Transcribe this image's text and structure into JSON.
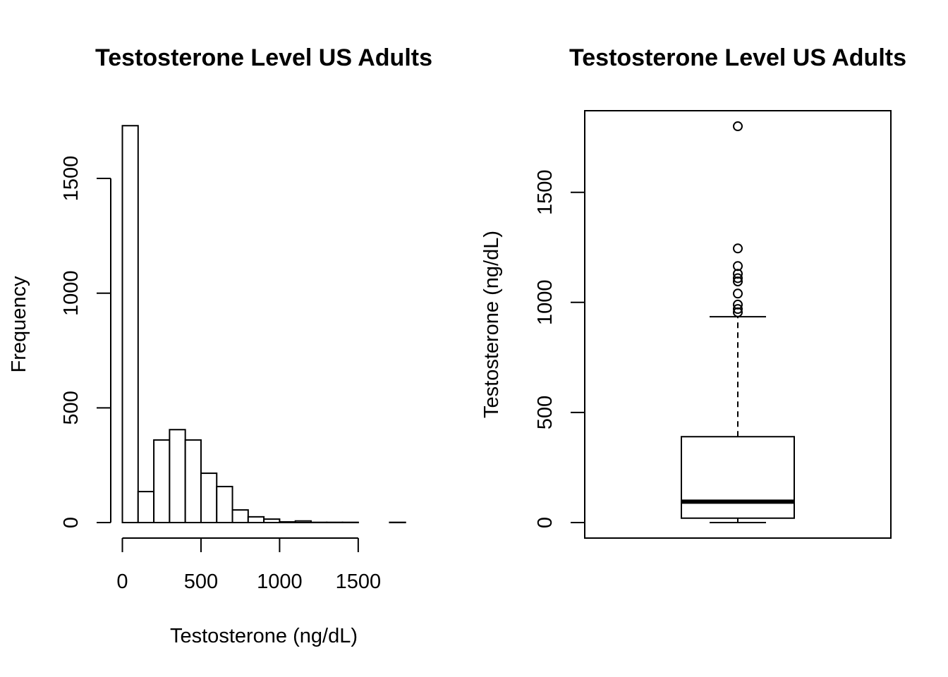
{
  "chart_data": [
    {
      "type": "histogram",
      "title": "Testosterone Level US Adults",
      "xlabel": "Testosterone (ng/dL)",
      "ylabel": "Frequency",
      "xlim": [
        0,
        1800
      ],
      "ylim": [
        0,
        1750
      ],
      "bin_width": 100,
      "bins": [
        {
          "x0": 0,
          "x1": 100,
          "count": 1730
        },
        {
          "x0": 100,
          "x1": 200,
          "count": 135
        },
        {
          "x0": 200,
          "x1": 300,
          "count": 360
        },
        {
          "x0": 300,
          "x1": 400,
          "count": 405
        },
        {
          "x0": 400,
          "x1": 500,
          "count": 360
        },
        {
          "x0": 500,
          "x1": 600,
          "count": 215
        },
        {
          "x0": 600,
          "x1": 700,
          "count": 157
        },
        {
          "x0": 700,
          "x1": 800,
          "count": 55
        },
        {
          "x0": 800,
          "x1": 900,
          "count": 25
        },
        {
          "x0": 900,
          "x1": 1000,
          "count": 15
        },
        {
          "x0": 1000,
          "x1": 1100,
          "count": 3
        },
        {
          "x0": 1100,
          "x1": 1200,
          "count": 7
        },
        {
          "x0": 1200,
          "x1": 1300,
          "count": 1
        },
        {
          "x0": 1300,
          "x1": 1400,
          "count": 1
        },
        {
          "x0": 1400,
          "x1": 1500,
          "count": 1
        },
        {
          "x0": 1500,
          "x1": 1600,
          "count": 0
        },
        {
          "x0": 1600,
          "x1": 1700,
          "count": 0
        },
        {
          "x0": 1700,
          "x1": 1800,
          "count": 1
        }
      ],
      "xticks": [
        "0",
        "500",
        "1000",
        "1500"
      ],
      "xtick_values": [
        0,
        500,
        1000,
        1500
      ],
      "yticks": [
        "0",
        "500",
        "1000",
        "1500"
      ],
      "ytick_values": [
        0,
        500,
        1000,
        1500
      ]
    },
    {
      "type": "boxplot",
      "title": "Testosterone Level US Adults",
      "ylabel": "Testosterone (ng/dL)",
      "ylim": [
        0,
        1800
      ],
      "min": 0,
      "q1": 20,
      "median": 95,
      "q3": 390,
      "upper_whisker": 935,
      "outliers": [
        955,
        970,
        990,
        1040,
        1095,
        1110,
        1130,
        1165,
        1245,
        1800
      ],
      "yticks": [
        "0",
        "500",
        "1000",
        "1500"
      ],
      "ytick_values": [
        0,
        500,
        1000,
        1500
      ]
    }
  ]
}
